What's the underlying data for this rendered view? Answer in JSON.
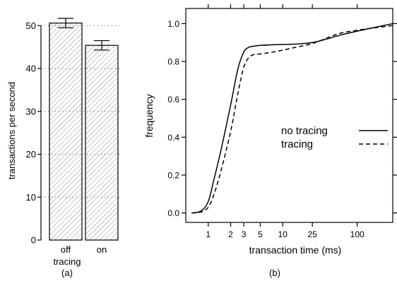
{
  "chart_data": [
    {
      "type": "bar",
      "panel_label": "(a)",
      "xlabel": "tracing",
      "ylabel": "transactions per second",
      "ylim": [
        0,
        54
      ],
      "yticks": [
        0,
        10,
        20,
        30,
        40,
        50
      ],
      "ytick_labels": [
        "0",
        "10",
        "20",
        "30",
        "40",
        "50"
      ],
      "categories": [
        "off",
        "on"
      ],
      "values": [
        50.6,
        45.4
      ],
      "error_bars": [
        {
          "low": 49.5,
          "high": 51.7
        },
        {
          "low": 44.3,
          "high": 46.5
        }
      ],
      "bar_fill": "diagonal-hatch",
      "grid": "dotted horizontal reference lines at y ticks",
      "colors": {
        "bar_edge": "#000000",
        "hatch": "#8c8c8c",
        "axis": "#000000"
      }
    },
    {
      "type": "line",
      "panel_label": "(b)",
      "xlabel": "transaction time (ms)",
      "ylabel": "frequency",
      "xscale": "log",
      "xlim": [
        0.5,
        300
      ],
      "ylim": [
        -0.05,
        1.08
      ],
      "xticks": [
        1,
        2,
        3,
        5,
        10,
        25,
        100
      ],
      "xtick_labels": [
        "1",
        "2",
        "3",
        "5",
        "10",
        "25",
        "100"
      ],
      "yticks": [
        0,
        0.2,
        0.4,
        0.6,
        0.8,
        1.0
      ],
      "ytick_labels": [
        "0.0",
        "0.2",
        "0.4",
        "0.6",
        "0.8",
        "1.0"
      ],
      "legend_position": "right-middle",
      "series": [
        {
          "name": "no tracing",
          "style": "solid",
          "x": [
            0.6,
            0.8,
            1.0,
            1.2,
            1.5,
            2.0,
            2.5,
            3.0,
            3.5,
            4.0,
            5.0,
            7.0,
            10,
            15,
            25,
            40,
            60,
            100,
            150,
            300
          ],
          "y": [
            0.0,
            0.01,
            0.06,
            0.18,
            0.34,
            0.57,
            0.76,
            0.85,
            0.875,
            0.88,
            0.885,
            0.888,
            0.89,
            0.892,
            0.9,
            0.92,
            0.94,
            0.96,
            0.975,
            1.0
          ]
        },
        {
          "name": "tracing",
          "style": "dashed",
          "x": [
            0.6,
            0.8,
            1.0,
            1.2,
            1.5,
            2.0,
            2.5,
            3.0,
            3.5,
            4.0,
            5.0,
            7.0,
            10,
            15,
            25,
            40,
            60,
            100,
            150,
            300
          ],
          "y": [
            0.0,
            0.005,
            0.03,
            0.1,
            0.23,
            0.43,
            0.63,
            0.77,
            0.82,
            0.835,
            0.84,
            0.848,
            0.86,
            0.875,
            0.895,
            0.925,
            0.95,
            0.965,
            0.975,
            0.99
          ]
        }
      ],
      "colors": {
        "line": "#000000",
        "axis": "#000000"
      }
    }
  ]
}
